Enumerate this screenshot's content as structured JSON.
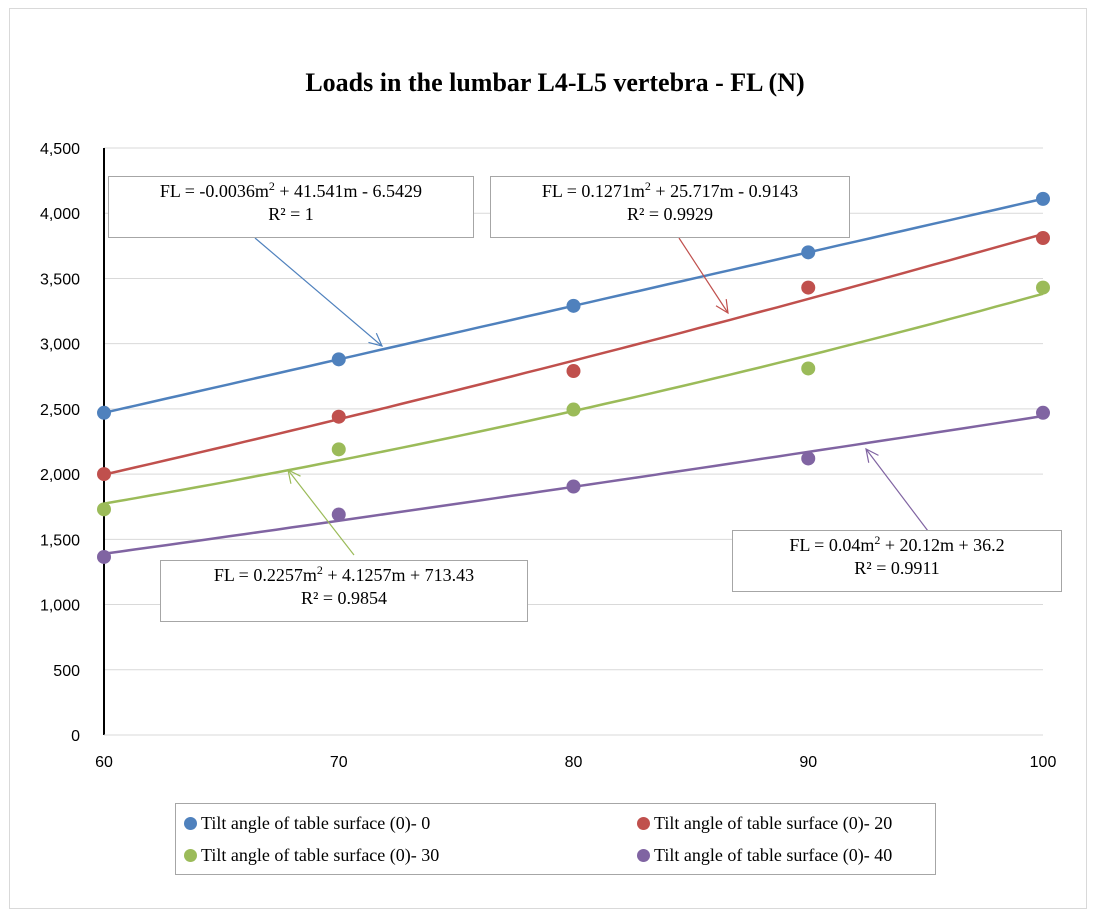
{
  "chart_data": {
    "type": "scatter",
    "title": "Loads in the lumbar L4-L5 vertebra - FL (N)",
    "xlabel": "",
    "ylabel": "",
    "x": [
      60,
      70,
      80,
      90,
      100
    ],
    "xlim": [
      60,
      100
    ],
    "ylim": [
      0,
      4500
    ],
    "x_ticks": [
      "60",
      "70",
      "80",
      "90",
      "100"
    ],
    "y_ticks": [
      "0",
      "500",
      "1,000",
      "1,500",
      "2,000",
      "2,500",
      "3,000",
      "3,500",
      "4,000",
      "4,500"
    ],
    "grid": "horizontal",
    "legend_position": "bottom",
    "series": [
      {
        "name": "Tilt angle of table surface (0)- 0",
        "color": "#4f81bd",
        "values": [
          2470,
          2880,
          3290,
          3700,
          4110
        ],
        "trendline": {
          "type": "polynomial",
          "a": -0.0036,
          "b": 41.541,
          "c": -6.5429
        },
        "equation": {
          "lhs": "FL = -0.0036m",
          "sup": "2",
          "rhs": " + 41.541m - 6.5429",
          "r2": "R² = 1"
        }
      },
      {
        "name": "Tilt angle of table surface (0)- 20",
        "color": "#c0504d",
        "values": [
          2000,
          2440,
          2790,
          3430,
          3810
        ],
        "trendline": {
          "type": "polynomial",
          "a": 0.1271,
          "b": 25.717,
          "c": -0.9143
        },
        "equation": {
          "lhs": "FL = 0.1271m",
          "sup": "2",
          "rhs": " + 25.717m - 0.9143",
          "r2": "R² = 0.9929"
        }
      },
      {
        "name": "Tilt angle of table surface (0)- 30",
        "color": "#9bbb59",
        "values": [
          1730,
          2190,
          2495,
          2810,
          3430
        ],
        "trendline": {
          "type": "polynomial",
          "a": 0.2257,
          "b": 4.1257,
          "c": 713.43
        },
        "equation": {
          "lhs": "FL = 0.2257m",
          "sup": "2",
          "rhs": " + 4.1257m + 713.43",
          "r2": "R² = 0.9854"
        }
      },
      {
        "name": "Tilt angle of table surface (0)- 40",
        "color": "#8064a2",
        "values": [
          1365,
          1690,
          1905,
          2120,
          2470
        ],
        "trendline": {
          "type": "polynomial",
          "a": 0.04,
          "b": 20.12,
          "c": 36.2
        },
        "equation": {
          "lhs": "FL = 0.04m",
          "sup": "2",
          "rhs": " + 20.12m + 36.2",
          "r2": "R² = 0.9911"
        }
      }
    ]
  }
}
